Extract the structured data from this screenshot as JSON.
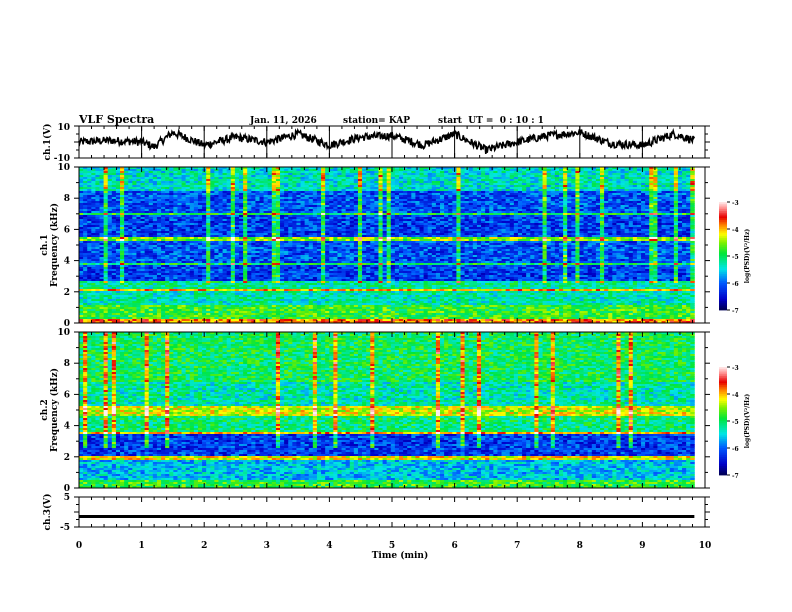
{
  "header": {
    "title": "VLF Spectra",
    "date": "Jan. 11, 2026",
    "station": "station= KAP",
    "start_ut": "start  UT =  0 : 10 : 1"
  },
  "chart_data": [
    {
      "type": "line",
      "name": "ch1-waveform",
      "ylabel": "ch.1(V)",
      "ylim": [
        -10,
        10
      ],
      "ytick_labels": [
        "10",
        "-10"
      ],
      "xlim": [
        0,
        10
      ],
      "x_end": 9.83,
      "description_series": "noisy voltage trace fluctuating roughly between -9 and +9 V",
      "approx_envelope": {
        "x": [
          0,
          0.5,
          1,
          1.2,
          1.5,
          2,
          2.5,
          3,
          3.5,
          4,
          4.5,
          5,
          5.5,
          6,
          6.5,
          7,
          7.5,
          8,
          8.5,
          9,
          9.5,
          9.83
        ],
        "y": [
          0,
          1,
          0,
          -3,
          6,
          -2,
          3,
          0,
          5,
          -2,
          3,
          4,
          -2,
          5,
          -5,
          0,
          4,
          6,
          -1,
          -2,
          5,
          1
        ]
      }
    },
    {
      "type": "heatmap",
      "name": "ch1-spectrogram",
      "ylabel_line1": "ch.1",
      "ylabel_line2": "Frequency (kHz)",
      "ylim": [
        0,
        10
      ],
      "ytick_labels": [
        "0",
        "2",
        "4",
        "6",
        "8",
        "10"
      ],
      "xlim": [
        0,
        10
      ],
      "x_end": 9.83,
      "colorbar": {
        "label": "log(PSD)(V²/Hz)",
        "range": [
          -7,
          -3
        ],
        "tick_labels": [
          "-3",
          "-4",
          "-5",
          "-6",
          "-7"
        ]
      },
      "bands": [
        {
          "f": [
            0.0,
            0.3
          ],
          "level": -3.8
        },
        {
          "f": [
            0.3,
            1.1
          ],
          "level": -4.8
        },
        {
          "f": [
            1.1,
            2.0
          ],
          "level": -5.3
        },
        {
          "f": [
            2.0,
            2.2
          ],
          "level": -4.0
        },
        {
          "f": [
            2.2,
            2.7
          ],
          "level": -5.2
        },
        {
          "f": [
            2.7,
            3.7
          ],
          "level": -6.2
        },
        {
          "f": [
            3.7,
            3.9
          ],
          "level": -5.0
        },
        {
          "f": [
            3.9,
            5.2
          ],
          "level": -6.1
        },
        {
          "f": [
            5.2,
            5.5
          ],
          "level": -4.5
        },
        {
          "f": [
            5.5,
            6.9
          ],
          "level": -6.2
        },
        {
          "f": [
            6.9,
            7.1
          ],
          "level": -4.9
        },
        {
          "f": [
            7.1,
            8.4
          ],
          "level": -6.1
        },
        {
          "f": [
            8.4,
            10.0
          ],
          "level": -5.4
        }
      ]
    },
    {
      "type": "heatmap",
      "name": "ch2-spectrogram",
      "ylabel_line1": "ch.2",
      "ylabel_line2": "Frequency (kHz)",
      "ylim": [
        0,
        10
      ],
      "ytick_labels": [
        "0",
        "2",
        "4",
        "6",
        "8",
        "10"
      ],
      "xlim": [
        0,
        10
      ],
      "x_end": 9.83,
      "colorbar": {
        "label": "log(PSD)(V²/Hz)",
        "range": [
          -7,
          -3
        ],
        "tick_labels": [
          "-3",
          "-4",
          "-5",
          "-6",
          "-7"
        ]
      },
      "bands": [
        {
          "f": [
            0.0,
            0.5
          ],
          "level": -4.8
        },
        {
          "f": [
            0.5,
            1.8
          ],
          "level": -5.6
        },
        {
          "f": [
            1.8,
            2.0
          ],
          "level": -4.2
        },
        {
          "f": [
            2.0,
            3.4
          ],
          "level": -6.2
        },
        {
          "f": [
            3.4,
            3.6
          ],
          "level": -4.0
        },
        {
          "f": [
            3.6,
            4.6
          ],
          "level": -5.1
        },
        {
          "f": [
            4.6,
            5.2
          ],
          "level": -4.3
        },
        {
          "f": [
            5.2,
            6.8
          ],
          "level": -5.3
        },
        {
          "f": [
            6.8,
            10.0
          ],
          "level": -5.0
        }
      ]
    },
    {
      "type": "line",
      "name": "ch3-waveform",
      "ylabel": "ch.3(V)",
      "ylim": [
        -5,
        5
      ],
      "ytick_labels": [
        "5",
        "-5"
      ],
      "xlim": [
        0,
        10
      ],
      "x_end": 9.83,
      "y_band": [
        -2.0,
        -1.0
      ]
    }
  ],
  "xaxis": {
    "label": "Time (min)",
    "tick_labels": [
      "0",
      "1",
      "2",
      "3",
      "4",
      "5",
      "6",
      "7",
      "8",
      "9",
      "10"
    ]
  }
}
